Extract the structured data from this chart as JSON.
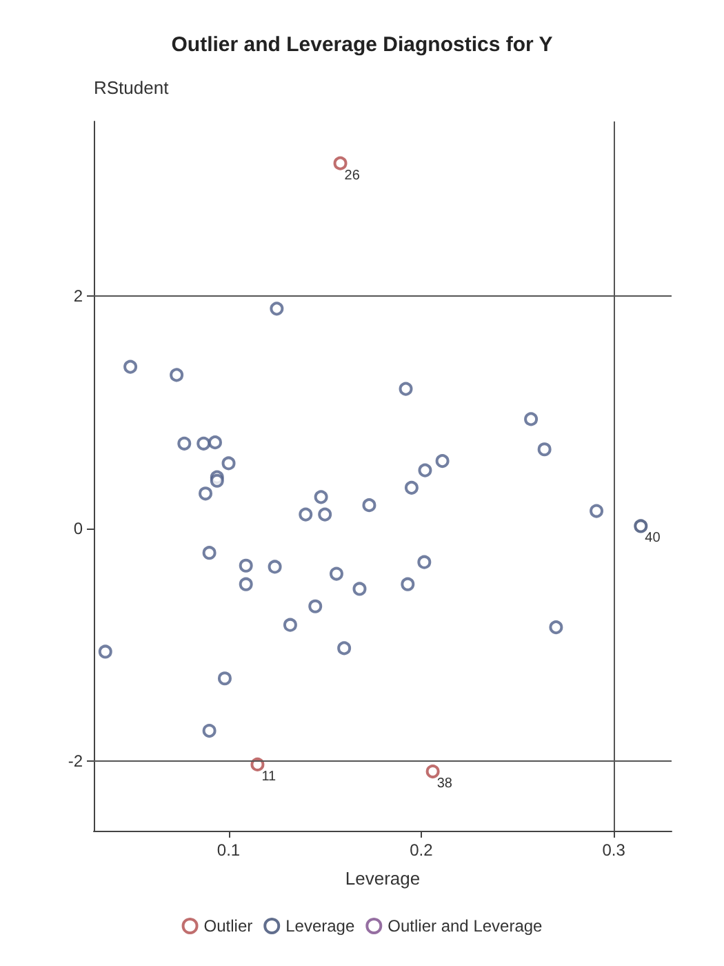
{
  "chart_data": {
    "type": "scatter",
    "title": "Outlier and Leverage Diagnostics for Y",
    "xlabel": "Leverage",
    "ylabel": "RStudent",
    "xlim": [
      0.03,
      0.33
    ],
    "xticks": [
      0.1,
      0.2,
      0.3
    ],
    "ylim": [
      -2.6,
      3.5
    ],
    "yticks": [
      -2,
      0,
      2
    ],
    "grid": false,
    "legend": "bottom",
    "marker": "circle",
    "series": [
      {
        "color": "#4f5f8a",
        "x": [
          0.036,
          0.049,
          0.073,
          0.077,
          0.09,
          0.09,
          0.088,
          0.087,
          0.093,
          0.094,
          0.094,
          0.098,
          0.1,
          0.109,
          0.109,
          0.124,
          0.125,
          0.132,
          0.14,
          0.145,
          0.148,
          0.15,
          0.156,
          0.16,
          0.168,
          0.173,
          0.192,
          0.193,
          0.195,
          0.2016,
          0.202,
          0.211,
          0.257,
          0.264,
          0.27,
          0.291
        ],
        "values": [
          -1.06,
          1.39,
          1.32,
          0.73,
          -1.74,
          -0.21,
          0.3,
          0.73,
          0.74,
          0.44,
          0.41,
          -1.29,
          0.56,
          -0.48,
          -0.32,
          -0.33,
          1.89,
          -0.83,
          0.12,
          -0.67,
          0.27,
          0.12,
          -0.39,
          -1.03,
          -0.52,
          0.2,
          1.2,
          -0.48,
          0.35,
          -0.29,
          0.5,
          0.58,
          0.94,
          0.68,
          -0.85,
          0.15
        ]
      },
      {
        "name": "Outlier",
        "color": "#b04a4a",
        "x": [
          0.115,
          0.158,
          0.206
        ],
        "values": [
          -2.03,
          3.14,
          -2.09
        ]
      },
      {
        "name": "Leverage",
        "color": "#3a4a70",
        "x": [
          0.314
        ],
        "values": [
          0.02
        ]
      },
      {
        "name": "Outlier and Leverage",
        "color": "#7a4a8a"
      }
    ],
    "ref_lines": [
      {
        "axis": "y",
        "value": -2
      },
      {
        "axis": "y",
        "value": 2
      },
      {
        "axis": "x",
        "value": 0.3
      }
    ],
    "annotations": [
      {
        "text": "11",
        "x": 0.115,
        "y": -2.03
      },
      {
        "text": "26",
        "x": 0.158,
        "y": 3.14
      },
      {
        "text": "38",
        "x": 0.206,
        "y": -2.09
      },
      {
        "text": "40",
        "x": 0.314,
        "y": 0.02
      }
    ]
  }
}
